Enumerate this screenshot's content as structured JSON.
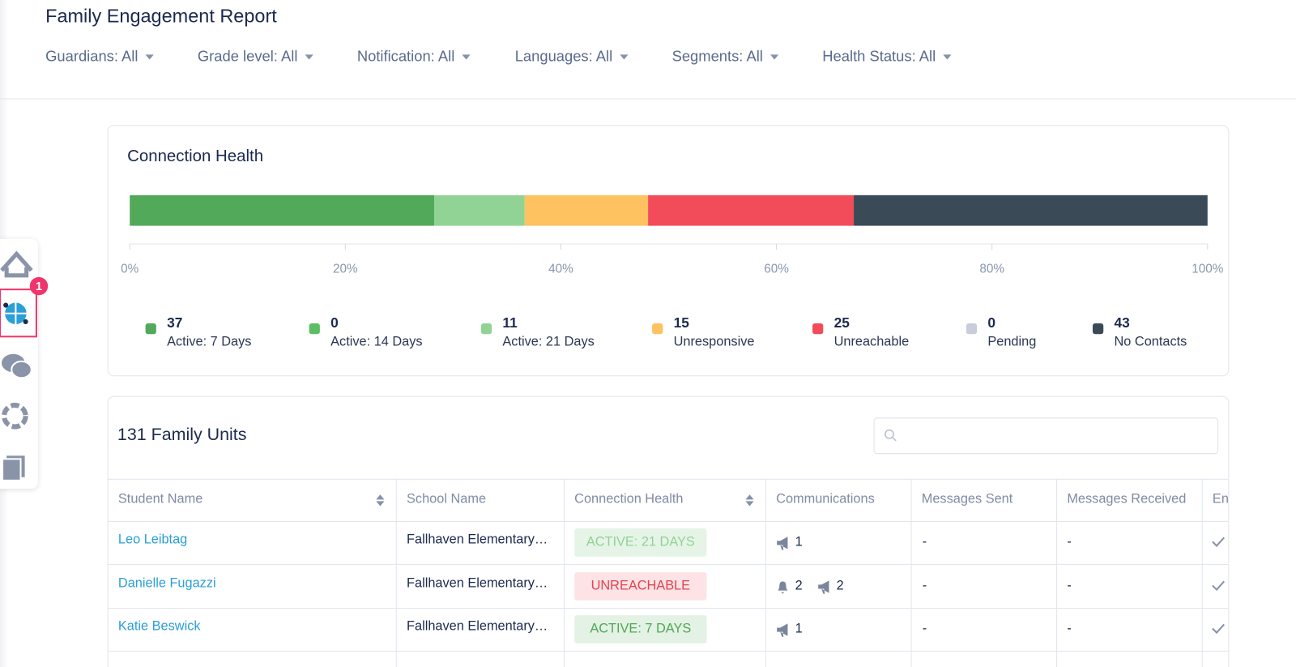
{
  "header": {
    "title": "Family Engagement Report",
    "filters": [
      "Guardians: All",
      "Grade level: All",
      "Notification: All",
      "Languages: All",
      "Segments: All",
      "Health Status: All"
    ]
  },
  "sidebar": {
    "badge": "1"
  },
  "chart_data": {
    "type": "bar",
    "stacked": true,
    "title": "Connection Health",
    "categories": [
      "Active: 7 Days",
      "Active: 14 Days",
      "Active: 21 Days",
      "Unresponsive",
      "Unreachable",
      "Pending",
      "No Contacts"
    ],
    "values": [
      37,
      0,
      11,
      15,
      25,
      0,
      43
    ],
    "colors": [
      "#52a95a",
      "#5cbf63",
      "#90d394",
      "#fec260",
      "#f24b5a",
      "#c8cdd9",
      "#3a4a57"
    ],
    "xlim": [
      0,
      100
    ],
    "xticks": [
      {
        "value": 0,
        "label": "0%"
      },
      {
        "value": 20,
        "label": "20%"
      },
      {
        "value": 40,
        "label": "40%"
      },
      {
        "value": 60,
        "label": "60%"
      },
      {
        "value": 80,
        "label": "80%"
      },
      {
        "value": 100,
        "label": "100%"
      }
    ]
  },
  "table": {
    "title": "131 Family Units",
    "columns": [
      "Student Name",
      "School Name",
      "Connection Health",
      "Communications",
      "Messages Sent",
      "Messages Received",
      "En"
    ],
    "rows": [
      {
        "student": "Leo Leibtag",
        "school": "Fallhaven Elementary…",
        "health": "ACTIVE: 21 DAYS",
        "status": "active21",
        "communications": [
          {
            "icon": "megaphone",
            "count": "1"
          }
        ],
        "sent": "-",
        "received": "-"
      },
      {
        "student": "Danielle Fugazzi",
        "school": "Fallhaven Elementary…",
        "health": "UNREACHABLE",
        "status": "unreachable",
        "communications": [
          {
            "icon": "bell",
            "count": "2"
          },
          {
            "icon": "megaphone",
            "count": "2"
          }
        ],
        "sent": "-",
        "received": "-"
      },
      {
        "student": "Katie Beswick",
        "school": "Fallhaven Elementary…",
        "health": "ACTIVE: 7 DAYS",
        "status": "active7",
        "communications": [
          {
            "icon": "megaphone",
            "count": "1"
          }
        ],
        "sent": "-",
        "received": "-"
      }
    ]
  }
}
